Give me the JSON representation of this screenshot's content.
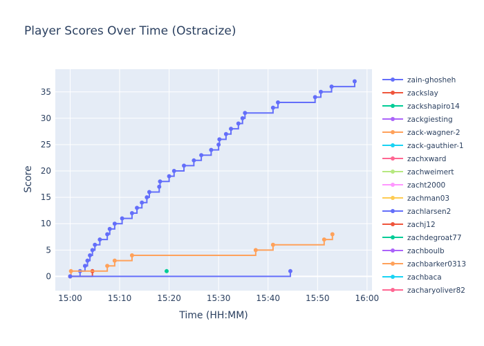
{
  "chart_data": {
    "type": "line",
    "line_shape": "step",
    "title": "Player Scores Over Time (Ostracize)",
    "xlabel": "Time (HH:MM)",
    "ylabel": "Score",
    "xlim": [
      "14:57",
      "16:01"
    ],
    "ylim": [
      -2.7,
      39.3
    ],
    "x_ticks": [
      "15:00",
      "15:10",
      "15:20",
      "15:30",
      "15:40",
      "15:50",
      "16:00"
    ],
    "y_ticks": [
      0,
      5,
      10,
      15,
      20,
      25,
      30,
      35
    ],
    "grid": true,
    "legend_position": "right",
    "series": [
      {
        "name": "zain-ghosheh",
        "color": "#636efa",
        "x": [
          "15:00",
          "15:02",
          "15:03",
          "15:03:30",
          "15:04",
          "15:04:30",
          "15:05",
          "15:06",
          "15:07:30",
          "15:08",
          "15:09",
          "15:10:30",
          "15:12:30",
          "15:13:30",
          "15:14:30",
          "15:15:30",
          "15:16",
          "15:18",
          "15:18:10",
          "15:20",
          "15:21",
          "15:23",
          "15:25",
          "15:26:30",
          "15:28:30",
          "15:30",
          "15:30:10",
          "15:31:30",
          "15:32:30",
          "15:34",
          "15:34:50",
          "15:35:20",
          "15:41",
          "15:42",
          "15:49:30",
          "15:50:40",
          "15:52:50",
          "15:57:30"
        ],
        "values": [
          0,
          1,
          2,
          3,
          4,
          5,
          6,
          7,
          8,
          9,
          10,
          11,
          12,
          13,
          14,
          15,
          16,
          17,
          18,
          19,
          20,
          21,
          22,
          23,
          24,
          25,
          26,
          27,
          28,
          29,
          30,
          31,
          32,
          33,
          34,
          35,
          36,
          37
        ]
      },
      {
        "name": "zackslay",
        "color": "#ef553b",
        "x": [
          "15:00",
          "15:04:30"
        ],
        "values": [
          0,
          1
        ]
      },
      {
        "name": "zackshapiro14",
        "color": "#00cc96",
        "x": [
          "15:19:30"
        ],
        "values": [
          1
        ]
      },
      {
        "name": "zackgiesting",
        "color": "#ab63fa",
        "x": [],
        "values": []
      },
      {
        "name": "zack-wagner-2",
        "color": "#ffa15a",
        "x": [
          "15:00",
          "15:00:10",
          "15:07:30",
          "15:09",
          "15:12:30",
          "15:37:30",
          "15:41",
          "15:51:20",
          "15:53"
        ],
        "values": [
          0,
          1,
          2,
          3,
          4,
          5,
          6,
          7,
          8
        ]
      },
      {
        "name": "zack-gauthier-1",
        "color": "#19d3f3",
        "x": [],
        "values": []
      },
      {
        "name": "zachxward",
        "color": "#ff6692",
        "x": [],
        "values": []
      },
      {
        "name": "zachweimert",
        "color": "#b6e880",
        "x": [],
        "values": []
      },
      {
        "name": "zacht2000",
        "color": "#ff97ff",
        "x": [],
        "values": []
      },
      {
        "name": "zachman03",
        "color": "#fecb52",
        "x": [],
        "values": []
      },
      {
        "name": "zachlarsen2",
        "color": "#636efa",
        "x": [
          "15:00",
          "15:44:30"
        ],
        "values": [
          0,
          1
        ]
      },
      {
        "name": "zachj12",
        "color": "#ef553b",
        "x": [],
        "values": []
      },
      {
        "name": "zachdegroat77",
        "color": "#00cc96",
        "x": [],
        "values": []
      },
      {
        "name": "zachboulb",
        "color": "#ab63fa",
        "x": [],
        "values": []
      },
      {
        "name": "zachbarker0313",
        "color": "#ffa15a",
        "x": [],
        "values": []
      },
      {
        "name": "zachbaca",
        "color": "#19d3f3",
        "x": [],
        "values": []
      },
      {
        "name": "zacharyoliver82",
        "color": "#ff6692",
        "x": [],
        "values": []
      }
    ]
  }
}
